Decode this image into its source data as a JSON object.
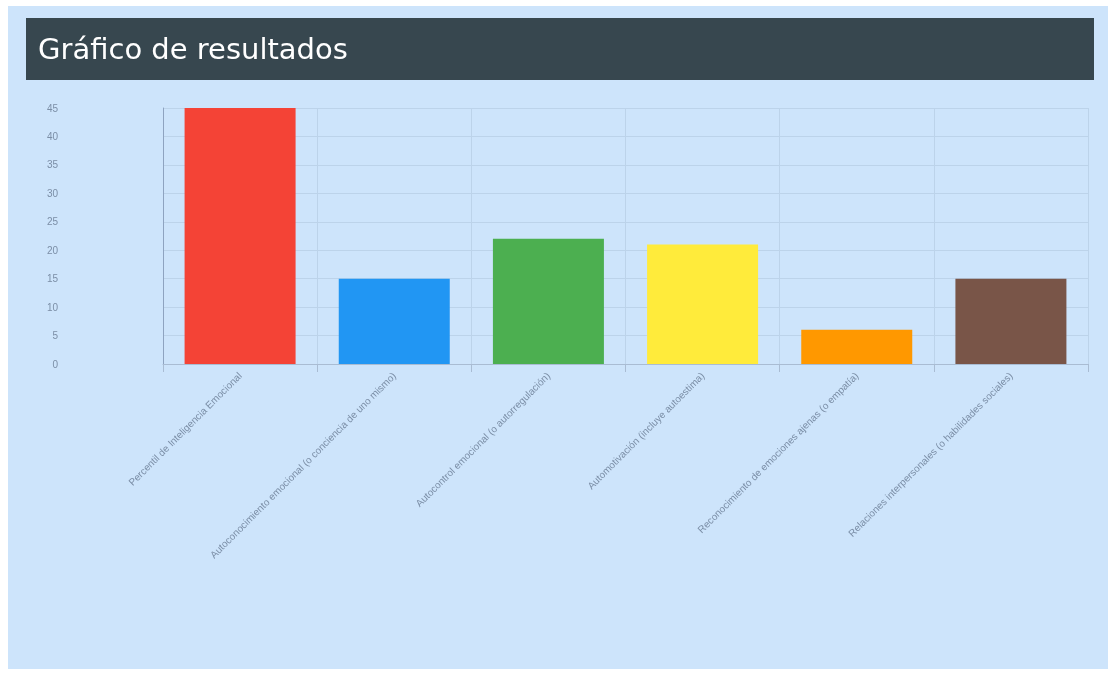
{
  "chart_data": {
    "type": "bar",
    "title": "Gráfico de resultados",
    "categories": [
      "Percentil de Inteligencia Emocional",
      "Autoconocimiento emocional (o conciencia de uno mismo)",
      "Autocontrol emocional (o autorregulación)",
      "Automotivación (incluye autoestima)",
      "Reconocimiento de emociones ajenas (o empatía)",
      "Relaciones interpersonales (o habilidades sociales)"
    ],
    "values": [
      45,
      15,
      22,
      21,
      6,
      15
    ],
    "colors": [
      "#f44336",
      "#2196f3",
      "#4caf50",
      "#ffeb3b",
      "#ff9800",
      "#795548"
    ],
    "ylim": [
      0,
      45
    ],
    "yticks": [
      0,
      5,
      10,
      15,
      20,
      25,
      30,
      35,
      40,
      45
    ],
    "grid": true
  }
}
